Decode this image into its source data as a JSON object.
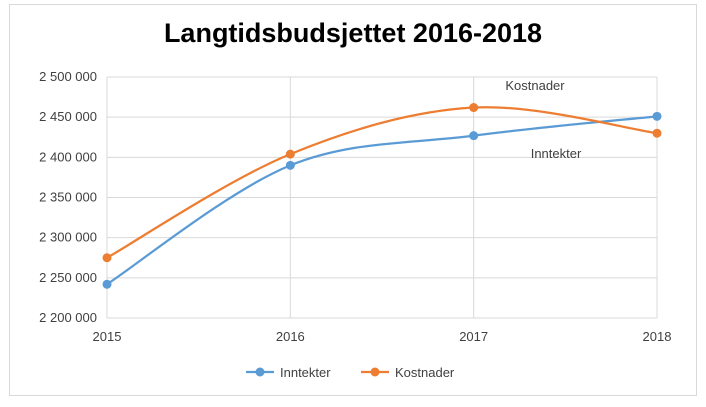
{
  "chart_data": {
    "type": "line",
    "title": "Langtidsbudsjettet 2016-2018",
    "categories": [
      "2015",
      "2016",
      "2017",
      "2018"
    ],
    "series": [
      {
        "name": "Inntekter",
        "values": [
          2242000,
          2390000,
          2427000,
          2451000
        ],
        "color": "#5b9bd5"
      },
      {
        "name": "Kostnader",
        "values": [
          2275000,
          2404000,
          2462000,
          2430000
        ],
        "color": "#ed7d31"
      }
    ],
    "yticks": [
      "2 200 000",
      "2 250 000",
      "2 300 000",
      "2 350 000",
      "2 400 000",
      "2 450 000",
      "2 500 000"
    ],
    "ylim": [
      2200000,
      2500000
    ],
    "annotations": [
      {
        "text": "Kostnader",
        "series": "Kostnader"
      },
      {
        "text": "Inntekter",
        "series": "Inntekter"
      }
    ],
    "grid": true,
    "legend_position": "bottom",
    "smooth": true
  }
}
